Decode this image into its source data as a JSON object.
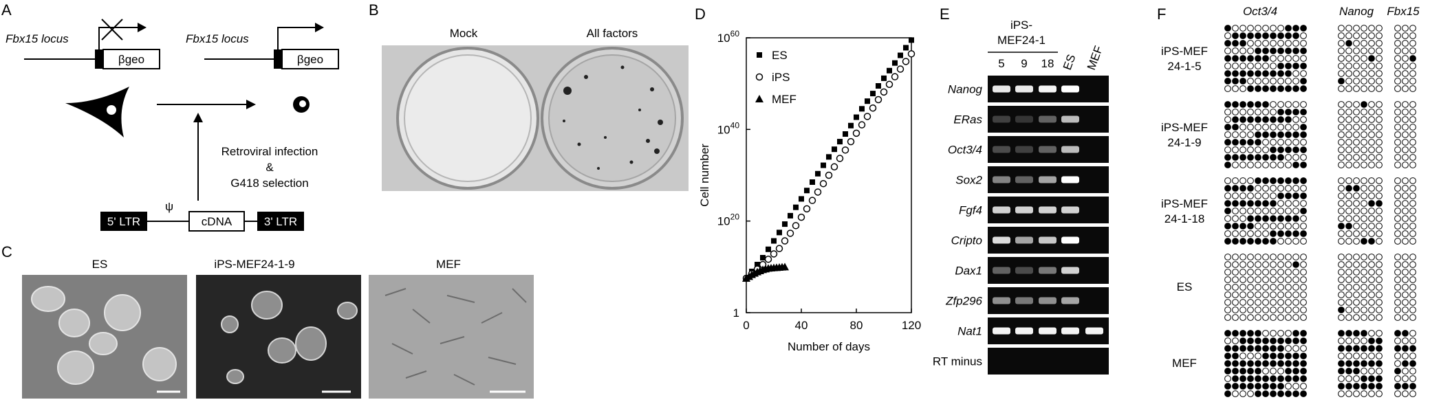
{
  "panels": {
    "A": {
      "label": "A",
      "locus_left": "Fbx15 locus",
      "locus_right": "Fbx15 locus",
      "gene_left": "βgeo",
      "gene_right": "βgeo",
      "infection": [
        "Retroviral infection",
        "&",
        "G418 selection"
      ],
      "psi": "ψ",
      "ltr5": "5' LTR",
      "cdna": "cDNA",
      "ltr3": "3' LTR"
    },
    "B": {
      "label": "B",
      "mock": "Mock",
      "all": "All factors"
    },
    "C": {
      "label": "C",
      "images": [
        "ES",
        "iPS-MEF24-1-9",
        "MEF"
      ]
    },
    "D": {
      "label": "D"
    },
    "E": {
      "label": "E",
      "group_title": [
        "iPS-",
        "MEF24-1"
      ],
      "columns": [
        "5",
        "9",
        "18",
        "ES",
        "MEF"
      ],
      "genes": [
        "Nanog",
        "ERas",
        "Oct3/4",
        "Sox2",
        "Fgf4",
        "Cripto",
        "Dax1",
        "Zfp296",
        "Nat1",
        "RT minus"
      ],
      "band_intensity": [
        [
          0.9,
          0.9,
          0.95,
          1.0,
          0.0
        ],
        [
          0.15,
          0.1,
          0.3,
          0.7,
          0.0
        ],
        [
          0.2,
          0.15,
          0.3,
          0.7,
          0.0
        ],
        [
          0.45,
          0.3,
          0.6,
          1.0,
          0.0
        ],
        [
          0.8,
          0.8,
          0.8,
          0.8,
          0.0
        ],
        [
          0.85,
          0.6,
          0.75,
          1.0,
          0.0
        ],
        [
          0.3,
          0.2,
          0.4,
          0.8,
          0.0
        ],
        [
          0.5,
          0.4,
          0.5,
          0.6,
          0.0
        ],
        [
          0.95,
          0.95,
          0.95,
          0.95,
          0.95
        ],
        [
          0.0,
          0.0,
          0.0,
          0.0,
          0.0
        ]
      ]
    },
    "F": {
      "label": "F",
      "columns": [
        "Oct3/4",
        "Nanog",
        "Fbx15"
      ],
      "rows": [
        {
          "label": [
            "iPS-MEF",
            "24-1-5"
          ]
        },
        {
          "label": [
            "iPS-MEF",
            "24-1-9"
          ]
        },
        {
          "label": [
            "iPS-MEF",
            "24-1-18"
          ]
        },
        {
          "label": [
            "ES"
          ]
        },
        {
          "label": [
            "MEF"
          ]
        }
      ],
      "methylated_fraction": [
        [
          0.55,
          0.05,
          0.05
        ],
        [
          0.5,
          0.04,
          0.0
        ],
        [
          0.45,
          0.12,
          0.03
        ],
        [
          0.02,
          0.02,
          0.0
        ],
        [
          0.8,
          0.6,
          0.45
        ]
      ]
    }
  },
  "chart_data": {
    "type": "scatter",
    "xlabel": "Number of days",
    "ylabel": "Cell number",
    "yscale": "log",
    "xlim": [
      0,
      120
    ],
    "ylim": [
      1,
      1e+60
    ],
    "xticks": [
      0,
      40,
      80,
      120
    ],
    "yticks": [
      {
        "base": "1",
        "exp": ""
      },
      {
        "base": "10",
        "exp": "20"
      },
      {
        "base": "10",
        "exp": "40"
      },
      {
        "base": "10",
        "exp": "60"
      }
    ],
    "legend_position": "top-left",
    "series": [
      {
        "name": "ES",
        "marker": "square-filled",
        "x": [
          0,
          12,
          24,
          36,
          48,
          60,
          72,
          84,
          96,
          108,
          120
        ],
        "log10_y": [
          7.5,
          12.0,
          17.5,
          23.0,
          28.5,
          34.0,
          39.0,
          44.5,
          49.5,
          54.5,
          59.5
        ]
      },
      {
        "name": "iPS",
        "marker": "circle-open",
        "x": [
          0,
          12,
          24,
          36,
          48,
          60,
          72,
          84,
          96,
          108,
          120
        ],
        "log10_y": [
          7.5,
          10.5,
          14.0,
          19.0,
          24.5,
          30.0,
          35.5,
          41.0,
          46.5,
          51.5,
          56.5
        ]
      },
      {
        "name": "MEF",
        "marker": "triangle-filled",
        "x": [
          0,
          4,
          8,
          12,
          16,
          20,
          24,
          28
        ],
        "log10_y": [
          7.5,
          8.3,
          8.9,
          9.4,
          9.7,
          9.8,
          9.9,
          10.0
        ]
      }
    ]
  }
}
